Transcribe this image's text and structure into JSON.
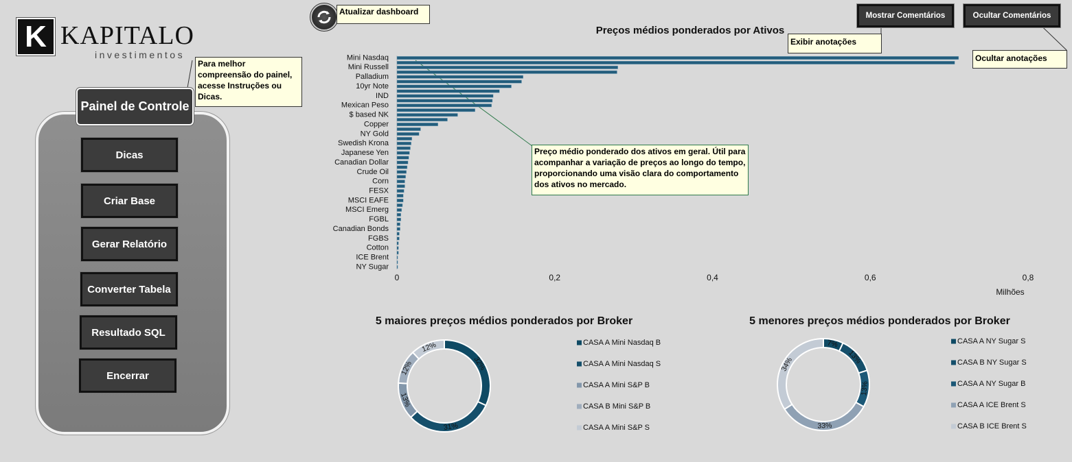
{
  "logo": {
    "mark": "K",
    "name": "KAPITALO",
    "tagline": "investimentos"
  },
  "control_panel": {
    "title": "Painel de Controle",
    "buttons": [
      "Dicas",
      "Criar Base",
      "Gerar Relatório",
      "Converter Tabela",
      "Resultado SQL",
      "Encerrar"
    ]
  },
  "toolbar": {
    "refresh": "Atualizar dashboard",
    "show_comments": "Mostrar Comentários",
    "hide_comments": "Ocultar Comentários"
  },
  "notes": {
    "panel_help": "Para melhor compreensão do painel, acesse Instruções ou Dicas.",
    "show": "Exibir anotações",
    "hide": "Ocultar anotações",
    "chart_help": "Preço médio ponderado dos ativos em geral. Útil para acompanhar a variação de preços ao longo do tempo, proporcionando uma visão clara do comportamento dos ativos no mercado."
  },
  "chart_data": [
    {
      "type": "bar",
      "orientation": "horizontal",
      "title": "Preços médios ponderados por Ativos",
      "categories": [
        "Mini Nasdaq",
        null,
        "Mini Russell",
        null,
        "Palladium",
        null,
        "10yr Note",
        null,
        "IND",
        null,
        "Mexican Peso",
        null,
        "$ based NK",
        null,
        "Copper",
        null,
        "NY Gold",
        null,
        "Swedish Krona",
        null,
        "Japanese Yen",
        null,
        "Canadian Dollar",
        null,
        "Crude Oil",
        null,
        "Corn",
        null,
        "FESX",
        null,
        "MSCI EAFE",
        null,
        "MSCI Emerg",
        null,
        "FGBL",
        null,
        "Canadian Bonds",
        null,
        "FGBS",
        null,
        "Cotton",
        null,
        "ICE Brent",
        null,
        "NY Sugar"
      ],
      "values": [
        0.712,
        0.707,
        0.28,
        0.279,
        0.16,
        0.158,
        0.145,
        0.13,
        0.122,
        0.121,
        0.12,
        0.099,
        0.077,
        0.064,
        0.052,
        0.03,
        0.028,
        0.019,
        0.018,
        0.017,
        0.016,
        0.015,
        0.014,
        0.013,
        0.012,
        0.011,
        0.01,
        0.01,
        0.009,
        0.008,
        0.008,
        0.007,
        0.006,
        0.005,
        0.005,
        0.004,
        0.004,
        0.003,
        0.003,
        0.002,
        0.002,
        0.002,
        0.001,
        0.001,
        0.001
      ],
      "color": "#235d7c",
      "xlim": [
        0,
        0.8
      ],
      "xticks": [
        0,
        {
          "value": 0.2,
          "label": "0,2"
        },
        {
          "value": 0.4,
          "label": "0,4"
        },
        {
          "value": 0.6,
          "label": "0,6"
        },
        {
          "value": 0.8,
          "label": "0,8"
        }
      ],
      "xlabel": "Milhões"
    },
    {
      "type": "donut",
      "title": "5 maiores preços médios ponderados por Broker",
      "categories": [
        "CASA A Mini Nasdaq B",
        "CASA A Mini Nasdaq S",
        "CASA A Mini S&P B",
        "CASA B Mini S&P B",
        "CASA A Mini S&P S"
      ],
      "values": [
        32,
        31,
        13,
        12,
        12
      ],
      "value_labels": [
        "32%",
        "31%",
        "13%",
        "12%",
        "12%"
      ],
      "colors": [
        "#0f4a64",
        "#154f6b",
        "#8397ab",
        "#9fadbd",
        "#c3cbd5"
      ]
    },
    {
      "type": "donut",
      "title": "5 menores preços médios ponderados por Broker",
      "categories": [
        "CASA A NY Sugar S",
        "CASA B NY Sugar S",
        "CASA A NY Sugar B",
        "CASA A ICE Brent S",
        "CASA B ICE Brent S"
      ],
      "values": [
        7,
        13,
        13,
        33,
        34
      ],
      "value_labels": [
        "7%",
        "13%",
        "13%",
        "33%",
        "34%"
      ],
      "colors": [
        "#0f4a64",
        "#154f6b",
        "#1b5877",
        "#8fa1b4",
        "#c3cbd5"
      ]
    }
  ]
}
